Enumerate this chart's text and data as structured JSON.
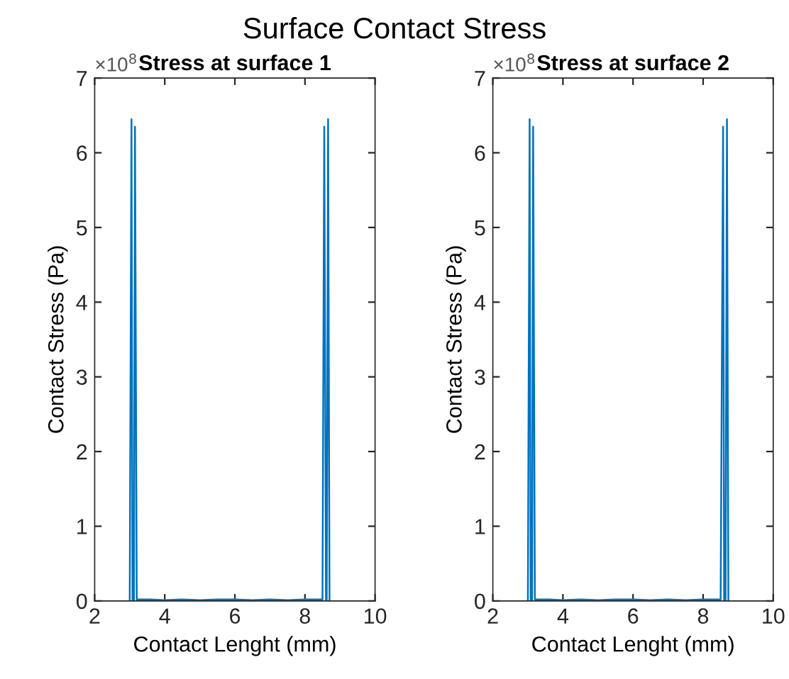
{
  "chart_data": [
    {
      "type": "line",
      "title": "Stress at surface 1",
      "xlabel": "Contact Lenght (mm)",
      "ylabel": "Contact Stress (Pa)",
      "annotations": [
        "Surface Contact Stress",
        "×10$^{8}$"
      ],
      "series": [
        {
          "color": "#0072bd",
          "x": [
            3.0,
            3.05,
            3.08,
            3.12,
            3.15,
            3.2,
            3.6,
            4.0,
            4.5,
            5.0,
            5.5,
            6.0,
            6.5,
            7.0,
            7.5,
            8.0,
            8.5,
            8.55,
            8.6,
            8.62,
            8.66,
            8.7
          ],
          "values": [
            0,
            6.45,
            0,
            0,
            6.35,
            0.02,
            0.02,
            0.01,
            0.02,
            0.01,
            0.02,
            0.02,
            0.01,
            0.02,
            0.01,
            0.02,
            0.02,
            6.35,
            0,
            0,
            6.45,
            0
          ]
        }
      ],
      "xlim": [
        2,
        10
      ],
      "xticks": [
        2,
        4,
        6,
        8,
        10
      ],
      "ylim": [
        0,
        7
      ],
      "yticks": [
        0,
        1,
        2,
        3,
        4,
        5,
        6,
        7
      ],
      "grid": false,
      "legend": false
    },
    {
      "type": "line",
      "title": "Stress at surface 2",
      "xlabel": "Contact Lenght (mm)",
      "ylabel": "Contact Stress (Pa)",
      "annotations": [
        "×10$^{8}$"
      ],
      "series": [
        {
          "color": "#0072bd",
          "x": [
            3.0,
            3.05,
            3.08,
            3.12,
            3.15,
            3.2,
            3.6,
            4.0,
            4.5,
            5.0,
            5.5,
            6.0,
            6.5,
            7.0,
            7.5,
            8.0,
            8.5,
            8.57,
            8.6,
            8.64,
            8.68,
            8.72
          ],
          "values": [
            0,
            6.45,
            0,
            0,
            6.35,
            0.02,
            0.02,
            0.01,
            0.02,
            0.01,
            0.02,
            0.02,
            0.01,
            0.02,
            0.01,
            0.02,
            0.02,
            6.35,
            0,
            0,
            6.45,
            0
          ]
        }
      ],
      "xlim": [
        2,
        10
      ],
      "xticks": [
        2,
        4,
        6,
        8,
        10
      ],
      "ylim": [
        0,
        7
      ],
      "yticks": [
        0,
        1,
        2,
        3,
        4,
        5,
        6,
        7
      ],
      "grid": false,
      "legend": false
    }
  ]
}
